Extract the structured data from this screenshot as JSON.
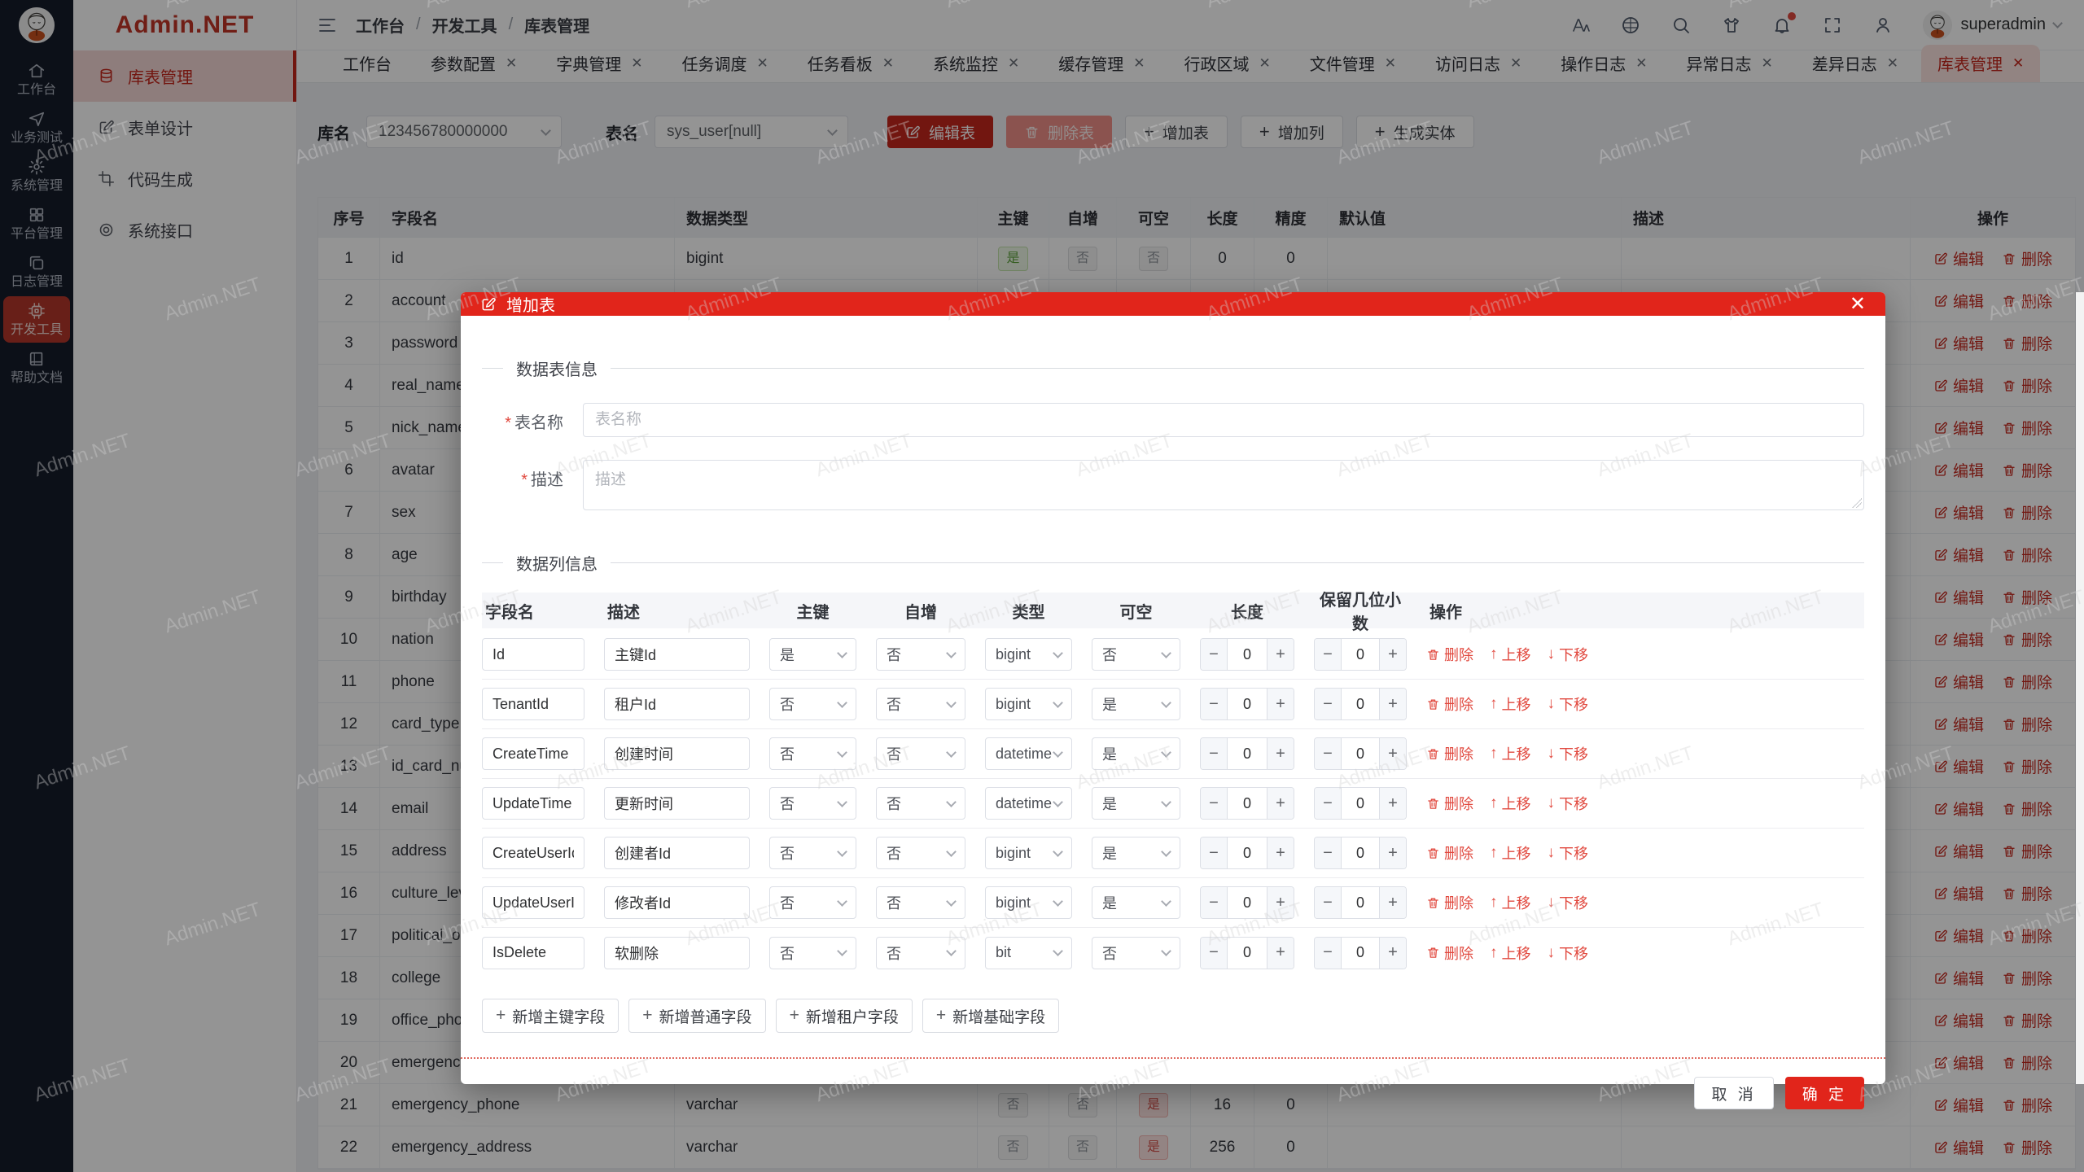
{
  "page": {
    "watermark": "Admin.NET"
  },
  "sidebar": {
    "logo_text": "Admin.NET",
    "rail": [
      {
        "label": "工作台",
        "icon": "home",
        "active": false
      },
      {
        "label": "业务测试",
        "icon": "send",
        "active": false
      },
      {
        "label": "系统管理",
        "icon": "gear",
        "active": false
      },
      {
        "label": "平台管理",
        "icon": "grid",
        "active": false
      },
      {
        "label": "日志管理",
        "icon": "copy",
        "active": false
      },
      {
        "label": "开发工具",
        "icon": "cpu",
        "active": true
      },
      {
        "label": "帮助文档",
        "icon": "book",
        "active": false
      }
    ],
    "submenu": [
      {
        "label": "库表管理",
        "icon": "database",
        "active": true
      },
      {
        "label": "表单设计",
        "icon": "edit",
        "active": false
      },
      {
        "label": "代码生成",
        "icon": "crop",
        "active": false
      },
      {
        "label": "系统接口",
        "icon": "target",
        "active": false
      }
    ]
  },
  "header": {
    "breadcrumb": [
      "工作台",
      "开发工具",
      "库表管理"
    ],
    "icons": [
      "font-size",
      "language",
      "search",
      "theme",
      "notification",
      "fullscreen",
      "profile"
    ],
    "username": "superadmin"
  },
  "tabs": [
    {
      "label": "工作台",
      "closable": false,
      "active": false
    },
    {
      "label": "参数配置",
      "closable": true,
      "active": false
    },
    {
      "label": "字典管理",
      "closable": true,
      "active": false
    },
    {
      "label": "任务调度",
      "closable": true,
      "active": false
    },
    {
      "label": "任务看板",
      "closable": true,
      "active": false
    },
    {
      "label": "系统监控",
      "closable": true,
      "active": false
    },
    {
      "label": "缓存管理",
      "closable": true,
      "active": false
    },
    {
      "label": "行政区域",
      "closable": true,
      "active": false
    },
    {
      "label": "文件管理",
      "closable": true,
      "active": false
    },
    {
      "label": "访问日志",
      "closable": true,
      "active": false
    },
    {
      "label": "操作日志",
      "closable": true,
      "active": false
    },
    {
      "label": "异常日志",
      "closable": true,
      "active": false
    },
    {
      "label": "差异日志",
      "closable": true,
      "active": false
    },
    {
      "label": "库表管理",
      "closable": true,
      "active": true
    }
  ],
  "toolbar": {
    "db_label": "库名",
    "db_value": "123456780000000",
    "table_label": "表名",
    "table_value": "sys_user[null]",
    "buttons": [
      {
        "label": "编辑表",
        "variant": "danger",
        "icon": "edit"
      },
      {
        "label": "删除表",
        "variant": "danger-light",
        "icon": "trash"
      },
      {
        "label": "增加表",
        "variant": "plain",
        "icon": "plus"
      },
      {
        "label": "增加列",
        "variant": "plain",
        "icon": "plus"
      },
      {
        "label": "生成实体",
        "variant": "plain",
        "icon": "plus"
      }
    ]
  },
  "grid": {
    "headers": [
      "序号",
      "字段名",
      "数据类型",
      "主键",
      "自增",
      "可空",
      "长度",
      "精度",
      "默认值",
      "描述",
      "操作"
    ],
    "action_edit": "编辑",
    "action_delete": "删除",
    "rows": [
      {
        "num": "1",
        "name": "id",
        "type": "bigint",
        "pk": "是",
        "inc": "否",
        "nullable": "否",
        "len": "0",
        "prec": "0"
      },
      {
        "num": "2",
        "name": "account",
        "type": "",
        "pk": "",
        "inc": "",
        "nullable": "",
        "len": "",
        "prec": ""
      },
      {
        "num": "3",
        "name": "password",
        "type": "",
        "pk": "",
        "inc": "",
        "nullable": "",
        "len": "",
        "prec": ""
      },
      {
        "num": "4",
        "name": "real_name",
        "type": "",
        "pk": "",
        "inc": "",
        "nullable": "",
        "len": "",
        "prec": ""
      },
      {
        "num": "5",
        "name": "nick_name",
        "type": "",
        "pk": "",
        "inc": "",
        "nullable": "",
        "len": "",
        "prec": ""
      },
      {
        "num": "6",
        "name": "avatar",
        "type": "",
        "pk": "",
        "inc": "",
        "nullable": "",
        "len": "",
        "prec": ""
      },
      {
        "num": "7",
        "name": "sex",
        "type": "",
        "pk": "",
        "inc": "",
        "nullable": "",
        "len": "",
        "prec": ""
      },
      {
        "num": "8",
        "name": "age",
        "type": "",
        "pk": "",
        "inc": "",
        "nullable": "",
        "len": "",
        "prec": ""
      },
      {
        "num": "9",
        "name": "birthday",
        "type": "",
        "pk": "",
        "inc": "",
        "nullable": "",
        "len": "",
        "prec": ""
      },
      {
        "num": "10",
        "name": "nation",
        "type": "",
        "pk": "",
        "inc": "",
        "nullable": "",
        "len": "",
        "prec": ""
      },
      {
        "num": "11",
        "name": "phone",
        "type": "",
        "pk": "",
        "inc": "",
        "nullable": "",
        "len": "",
        "prec": ""
      },
      {
        "num": "12",
        "name": "card_type",
        "type": "",
        "pk": "",
        "inc": "",
        "nullable": "",
        "len": "",
        "prec": ""
      },
      {
        "num": "13",
        "name": "id_card_nu",
        "type": "",
        "pk": "",
        "inc": "",
        "nullable": "",
        "len": "",
        "prec": ""
      },
      {
        "num": "14",
        "name": "email",
        "type": "",
        "pk": "",
        "inc": "",
        "nullable": "",
        "len": "",
        "prec": ""
      },
      {
        "num": "15",
        "name": "address",
        "type": "",
        "pk": "",
        "inc": "",
        "nullable": "",
        "len": "",
        "prec": ""
      },
      {
        "num": "16",
        "name": "culture_lev",
        "type": "",
        "pk": "",
        "inc": "",
        "nullable": "",
        "len": "",
        "prec": ""
      },
      {
        "num": "17",
        "name": "political_ou",
        "type": "",
        "pk": "",
        "inc": "",
        "nullable": "",
        "len": "",
        "prec": ""
      },
      {
        "num": "18",
        "name": "college",
        "type": "",
        "pk": "",
        "inc": "",
        "nullable": "",
        "len": "",
        "prec": ""
      },
      {
        "num": "19",
        "name": "office_phon",
        "type": "",
        "pk": "",
        "inc": "",
        "nullable": "",
        "len": "",
        "prec": ""
      },
      {
        "num": "20",
        "name": "emergency",
        "type": "",
        "pk": "",
        "inc": "",
        "nullable": "",
        "len": "",
        "prec": ""
      },
      {
        "num": "21",
        "name": "emergency_phone",
        "type": "varchar",
        "pk": "否",
        "inc": "否",
        "nullable": "是",
        "len": "16",
        "prec": "0"
      },
      {
        "num": "22",
        "name": "emergency_address",
        "type": "varchar",
        "pk": "否",
        "inc": "否",
        "nullable": "是",
        "len": "256",
        "prec": "0"
      }
    ]
  },
  "modal": {
    "title": "增加表",
    "close": "✕",
    "section_table": "数据表信息",
    "name_label": "表名称",
    "name_placeholder": "表名称",
    "desc_label": "描述",
    "desc_placeholder": "描述",
    "section_columns": "数据列信息",
    "col_headers": [
      "字段名",
      "描述",
      "主键",
      "自增",
      "类型",
      "可空",
      "长度",
      "保留几位小数",
      "操作"
    ],
    "rows": [
      {
        "field": "Id",
        "desc": "主键Id",
        "pk": "是",
        "inc": "否",
        "type": "bigint",
        "nullable": "否",
        "len": "0",
        "dec": "0"
      },
      {
        "field": "TenantId",
        "desc": "租户Id",
        "pk": "否",
        "inc": "否",
        "type": "bigint",
        "nullable": "是",
        "len": "0",
        "dec": "0"
      },
      {
        "field": "CreateTime",
        "desc": "创建时间",
        "pk": "否",
        "inc": "否",
        "type": "datetime",
        "nullable": "是",
        "len": "0",
        "dec": "0"
      },
      {
        "field": "UpdateTime",
        "desc": "更新时间",
        "pk": "否",
        "inc": "否",
        "type": "datetime",
        "nullable": "是",
        "len": "0",
        "dec": "0"
      },
      {
        "field": "CreateUserId",
        "desc": "创建者Id",
        "pk": "否",
        "inc": "否",
        "type": "bigint",
        "nullable": "是",
        "len": "0",
        "dec": "0"
      },
      {
        "field": "UpdateUserId",
        "desc": "修改者Id",
        "pk": "否",
        "inc": "否",
        "type": "bigint",
        "nullable": "是",
        "len": "0",
        "dec": "0"
      },
      {
        "field": "IsDelete",
        "desc": "软删除",
        "pk": "否",
        "inc": "否",
        "type": "bit",
        "nullable": "否",
        "len": "0",
        "dec": "0"
      }
    ],
    "row_actions": {
      "delete": "删除",
      "up": "上移",
      "down": "下移"
    },
    "add_buttons": [
      "新增主键字段",
      "新增普通字段",
      "新增租户字段",
      "新增基础字段"
    ],
    "cancel": "取 消",
    "confirm": "确 定"
  },
  "colors": {
    "theme_red": "#e1251b",
    "rail_bg": "#161d2a",
    "tab_active_bg": "#fbe3e1"
  }
}
